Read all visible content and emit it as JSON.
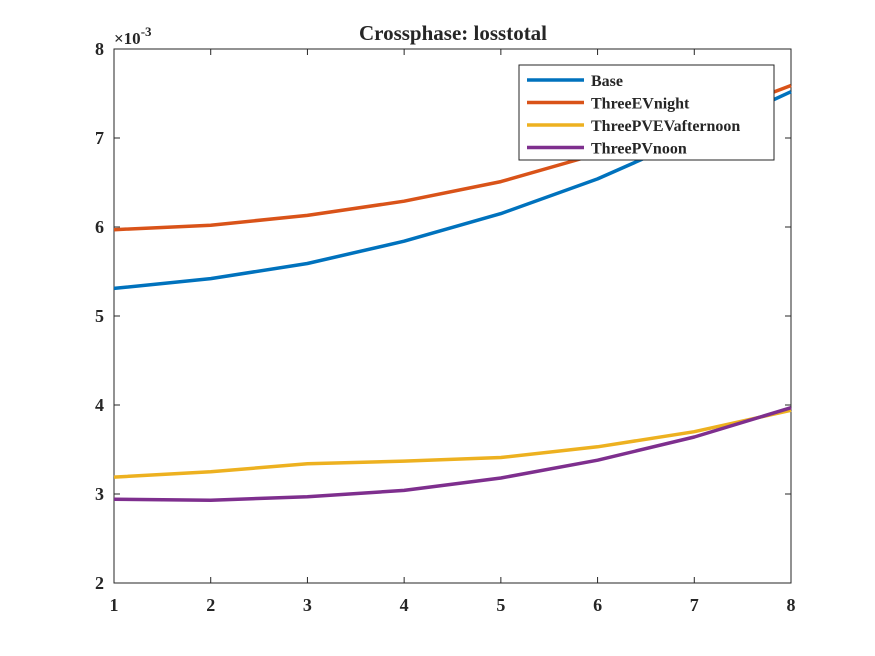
{
  "chart_data": {
    "type": "line",
    "title": "Crossphase: losstotal",
    "xlabel": "",
    "ylabel": "",
    "y_exponent_label": "×10",
    "y_exponent_power": "-3",
    "x": [
      1,
      2,
      3,
      4,
      5,
      6,
      7,
      8
    ],
    "xlim": [
      1,
      8
    ],
    "ylim": [
      2,
      8
    ],
    "xticks": [
      "1",
      "2",
      "3",
      "4",
      "5",
      "6",
      "7",
      "8"
    ],
    "yticks": [
      "2",
      "3",
      "4",
      "5",
      "6",
      "7",
      "8"
    ],
    "yscale_note": "values in units of 10^-3",
    "grid": false,
    "legend_position": "top-right",
    "series": [
      {
        "name": "Base",
        "color": "#0072BD",
        "values": [
          5.31,
          5.42,
          5.59,
          5.84,
          6.15,
          6.54,
          7.02,
          7.52
        ]
      },
      {
        "name": "ThreeEVnight",
        "color": "#D95319",
        "values": [
          5.97,
          6.02,
          6.13,
          6.29,
          6.51,
          6.82,
          7.18,
          7.59
        ]
      },
      {
        "name": "ThreePVEVafternoon",
        "color": "#EDB120",
        "values": [
          3.19,
          3.25,
          3.34,
          3.37,
          3.41,
          3.53,
          3.7,
          3.94
        ]
      },
      {
        "name": "ThreePVnoon",
        "color": "#7E2F8E",
        "values": [
          2.94,
          2.93,
          2.97,
          3.04,
          3.18,
          3.38,
          3.64,
          3.97
        ]
      }
    ]
  }
}
